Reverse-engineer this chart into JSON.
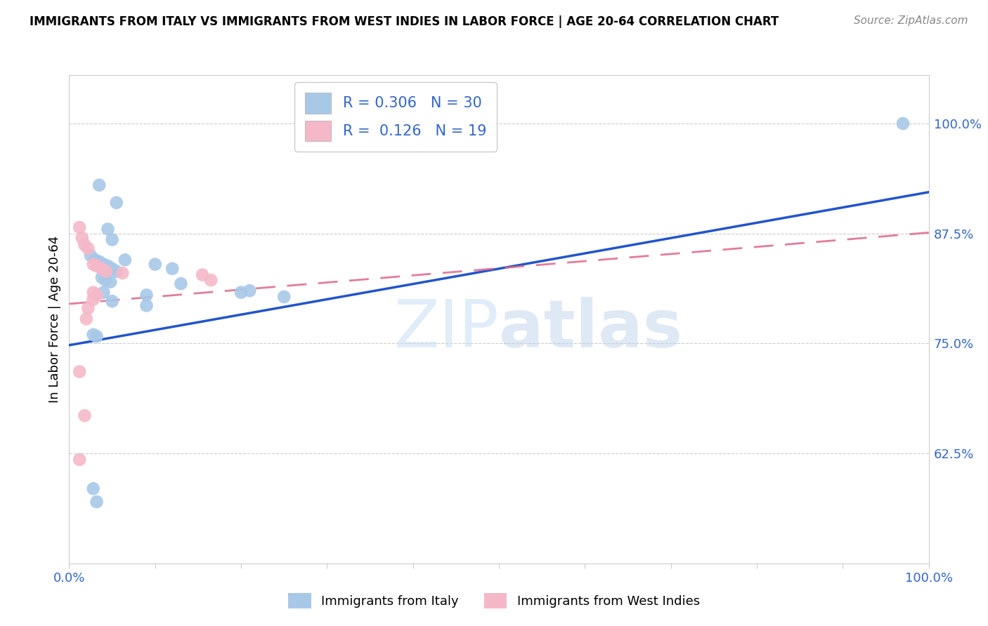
{
  "title": "IMMIGRANTS FROM ITALY VS IMMIGRANTS FROM WEST INDIES IN LABOR FORCE | AGE 20-64 CORRELATION CHART",
  "source": "Source: ZipAtlas.com",
  "ylabel": "In Labor Force | Age 20-64",
  "watermark_part1": "ZIP",
  "watermark_part2": "atlas",
  "xlim": [
    0.0,
    1.0
  ],
  "ylim": [
    0.5,
    1.055
  ],
  "yticks": [
    0.625,
    0.75,
    0.875,
    1.0
  ],
  "ytick_labels": [
    "62.5%",
    "75.0%",
    "87.5%",
    "100.0%"
  ],
  "blue_color": "#a8c8e8",
  "pink_color": "#f5b8c8",
  "blue_line_color": "#2255cc",
  "pink_line_color": "#dd6688",
  "R_blue": 0.306,
  "N_blue": 30,
  "R_pink": 0.126,
  "N_pink": 19,
  "legend_label_blue": "Immigrants from Italy",
  "legend_label_pink": "Immigrants from West Indies",
  "blue_line_x0": 0.0,
  "blue_line_y0": 0.748,
  "blue_line_x1": 1.0,
  "blue_line_y1": 0.922,
  "pink_line_x0": 0.0,
  "pink_line_y0": 0.795,
  "pink_line_x1": 1.0,
  "pink_line_y1": 0.876,
  "italy_x": [
    0.035,
    0.055,
    0.045,
    0.05,
    0.065,
    0.025,
    0.03,
    0.035,
    0.04,
    0.045,
    0.05,
    0.055,
    0.038,
    0.042,
    0.048,
    0.12,
    0.13,
    0.09,
    0.2,
    0.25,
    0.1,
    0.21,
    0.04,
    0.05,
    0.09,
    0.028,
    0.032,
    0.97,
    0.028,
    0.032
  ],
  "italy_y": [
    0.93,
    0.91,
    0.88,
    0.868,
    0.845,
    0.85,
    0.845,
    0.843,
    0.84,
    0.838,
    0.835,
    0.832,
    0.825,
    0.822,
    0.82,
    0.835,
    0.818,
    0.805,
    0.808,
    0.803,
    0.84,
    0.81,
    0.808,
    0.798,
    0.793,
    0.76,
    0.758,
    1.0,
    0.585,
    0.57
  ],
  "westindies_x": [
    0.012,
    0.015,
    0.018,
    0.022,
    0.028,
    0.032,
    0.038,
    0.043,
    0.062,
    0.028,
    0.032,
    0.155,
    0.165,
    0.028,
    0.022,
    0.02,
    0.012,
    0.018,
    0.012
  ],
  "westindies_y": [
    0.882,
    0.87,
    0.862,
    0.858,
    0.84,
    0.838,
    0.835,
    0.832,
    0.83,
    0.808,
    0.805,
    0.828,
    0.822,
    0.8,
    0.79,
    0.778,
    0.718,
    0.668,
    0.618
  ],
  "background_color": "#ffffff",
  "grid_color": "#cccccc",
  "accent_color": "#3366cc"
}
